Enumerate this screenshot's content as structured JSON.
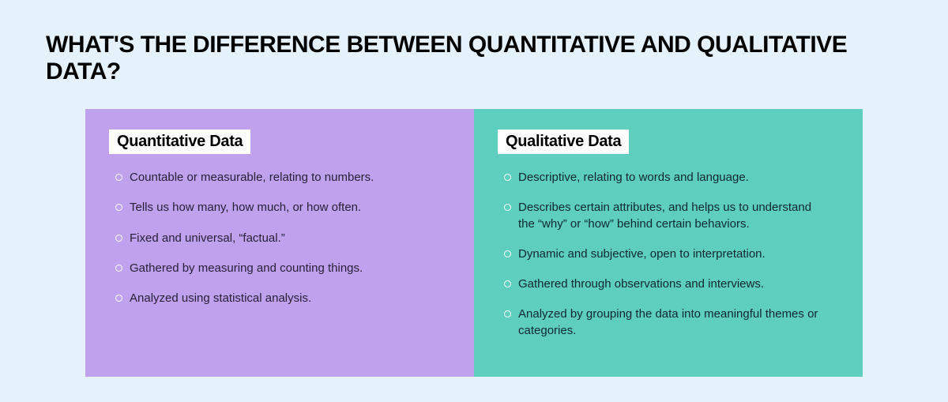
{
  "type": "infographic",
  "background_color": "#e5f2fb",
  "title": {
    "text": "WHAT'S THE DIFFERENCE BETWEEN QUANTITATIVE AND QUALITATIVE DATA?",
    "color": "#000000",
    "fontsize": 30
  },
  "columns": [
    {
      "heading": "Quantitative Data",
      "heading_bg": "#ffffff",
      "heading_color": "#000000",
      "heading_fontsize": 20,
      "bg_color": "#c0a1ee",
      "text_color": "#272137",
      "item_fontsize": 15,
      "bullet_ring_color": "#ffffff",
      "items": [
        "Countable or measurable, relating to numbers.",
        "Tells us how many, how much, or how often.",
        "Fixed and universal, “factual.”",
        "Gathered by measuring and counting things.",
        "Analyzed using statistical analysis."
      ]
    },
    {
      "heading": "Qualitative Data",
      "heading_bg": "#ffffff",
      "heading_color": "#000000",
      "heading_fontsize": 20,
      "bg_color": "#5ecebf",
      "text_color": "#10292f",
      "item_fontsize": 15,
      "bullet_ring_color": "#ffffff",
      "items": [
        "Descriptive, relating to words and language.",
        "Describes certain attributes, and helps us to understand the “why” or “how” behind certain behaviors.",
        "Dynamic and subjective, open to interpretation.",
        "Gathered through observations and interviews.",
        "Analyzed by grouping the data into meaningful themes or categories."
      ]
    }
  ]
}
